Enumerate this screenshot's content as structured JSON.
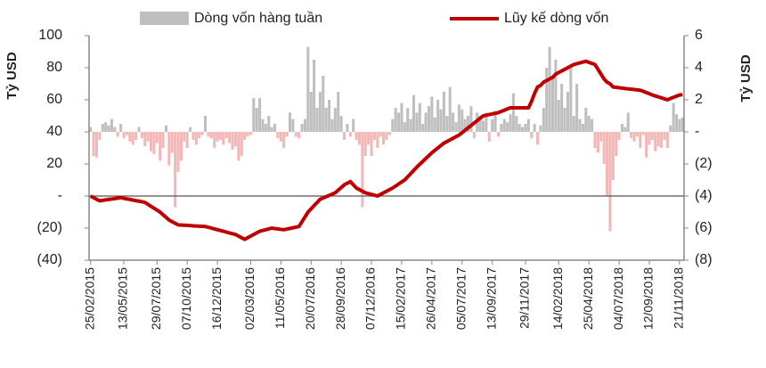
{
  "chart_data": {
    "type": "bar-line",
    "categories": [
      "25/02/2015",
      null,
      null,
      null,
      null,
      null,
      null,
      null,
      null,
      null,
      null,
      "13/05/2015",
      null,
      null,
      null,
      null,
      null,
      null,
      null,
      null,
      null,
      null,
      "29/07/2015",
      null,
      null,
      null,
      null,
      null,
      null,
      null,
      null,
      null,
      "07/10/2015",
      null,
      null,
      null,
      null,
      null,
      null,
      null,
      null,
      null,
      "16/12/2015",
      null,
      null,
      null,
      null,
      null,
      null,
      null,
      null,
      null,
      null,
      "02/03/2016",
      null,
      null,
      null,
      null,
      null,
      null,
      null,
      null,
      null,
      "11/05/2016",
      null,
      null,
      null,
      null,
      null,
      null,
      null,
      null,
      null,
      "20/07/2016",
      null,
      null,
      null,
      null,
      null,
      null,
      null,
      null,
      null,
      "28/09/2016",
      null,
      null,
      null,
      null,
      null,
      null,
      null,
      null,
      null,
      "07/12/2016",
      null,
      null,
      null,
      null,
      null,
      null,
      null,
      null,
      null,
      "15/02/2017",
      null,
      null,
      null,
      null,
      null,
      null,
      null,
      null,
      null,
      "26/04/2017",
      null,
      null,
      null,
      null,
      null,
      null,
      null,
      null,
      null,
      "05/07/2017",
      null,
      null,
      null,
      null,
      null,
      null,
      null,
      null,
      null,
      "13/09/2017",
      null,
      null,
      null,
      null,
      null,
      null,
      null,
      null,
      null,
      null,
      "29/11/2017",
      null,
      null,
      null,
      null,
      null,
      null,
      null,
      null,
      null,
      null,
      "14/02/2018",
      null,
      null,
      null,
      null,
      null,
      null,
      null,
      null,
      null,
      "25/04/2018",
      null,
      null,
      null,
      null,
      null,
      null,
      null,
      null,
      null,
      "04/07/2018",
      null,
      null,
      null,
      null,
      null,
      null,
      null,
      null,
      null,
      "12/09/2018",
      null,
      null,
      null,
      null,
      null,
      null,
      null,
      null,
      null,
      "21/11/2018",
      null
    ],
    "series": [
      {
        "name": "Dòng vốn hàng tuần",
        "kind": "bar",
        "axis": "y2",
        "color": "#bfbfbf",
        "negative_color": "#f2b8b8",
        "values": [
          0.3,
          -1.5,
          -1.6,
          -0.5,
          0.5,
          0.6,
          0.4,
          0.8,
          0.3,
          -0.3,
          0.5,
          -0.4,
          -0.2,
          -0.6,
          -0.8,
          -0.5,
          0.3,
          -0.4,
          -0.9,
          -0.6,
          -1.2,
          -1.4,
          -0.7,
          -1.8,
          -1.0,
          0.4,
          -2.1,
          -1.3,
          -4.7,
          -2.5,
          -1.8,
          -0.6,
          -1.0,
          0.3,
          -0.5,
          -0.8,
          -0.4,
          -0.2,
          1.0,
          -0.3,
          -0.4,
          -1.0,
          -0.6,
          -0.5,
          -0.8,
          -0.4,
          -0.7,
          -1.1,
          -0.9,
          -1.8,
          -1.5,
          -0.5,
          -0.3,
          -0.2,
          2.1,
          1.5,
          2.1,
          0.8,
          0.5,
          1.0,
          0.3,
          0.5,
          -0.4,
          -0.6,
          -1.0,
          -0.3,
          1.2,
          0.8,
          -0.3,
          -0.4,
          0.5,
          0.8,
          5.3,
          2.5,
          4.5,
          1.5,
          2.5,
          3.5,
          1.5,
          2.0,
          0.8,
          1.5,
          2.5,
          1.0,
          -0.5,
          0.5,
          -0.3,
          0.8,
          -0.5,
          -0.8,
          -4.7,
          -1.5,
          -0.8,
          -1.5,
          -0.5,
          -1.0,
          -0.3,
          -0.8,
          -0.5,
          -0.2,
          0.8,
          1.5,
          1.2,
          1.8,
          0.6,
          1.5,
          0.8,
          2.3,
          1.2,
          1.8,
          0.5,
          1.2,
          1.6,
          2.2,
          0.9,
          2.0,
          1.4,
          2.5,
          1.0,
          2.8,
          1.2,
          0.6,
          1.7,
          1.4,
          0.8,
          1.0,
          1.6,
          -0.4,
          1.2,
          1.0,
          0.7,
          1.2,
          -0.6,
          0.8,
          1.3,
          -0.3,
          0.5,
          0.8,
          0.6,
          1.1,
          2.4,
          1.0,
          0.5,
          0.3,
          0.5,
          0.8,
          -0.4,
          0.5,
          -0.8,
          0.4,
          1.5,
          4.0,
          5.3,
          3.5,
          4.5,
          2.0,
          3.0,
          1.5,
          2.5,
          4.2,
          1.0,
          3.0,
          0.8,
          0.5,
          1.5,
          1.0,
          0.8,
          -1.0,
          -1.3,
          -0.6,
          -2.0,
          -4.0,
          -6.2,
          -3.0,
          -1.5,
          -0.5,
          0.5,
          0.3,
          1.2,
          -0.4,
          -0.6,
          -0.3,
          -1.0,
          -0.2,
          -1.6,
          -0.8,
          -0.5,
          -1.2,
          -0.9,
          -1.0,
          -0.5,
          -1.0,
          0.4,
          1.8,
          1.1,
          0.8,
          0.9
        ]
      },
      {
        "name": "Lũy kế dòng vốn",
        "kind": "line",
        "color": "#c00000",
        "values": [
          0,
          -1,
          -2,
          -3,
          -2.7,
          -2.4,
          -2.1,
          -1.9,
          -1.6,
          -1.3,
          -1,
          -1.4,
          -1.8,
          -2.1,
          -2.5,
          -2.9,
          -3.2,
          -3.6,
          -4,
          -5.2,
          -6.4,
          -7.6,
          -8.8,
          -10,
          -11.7,
          -13.3,
          -15,
          -16,
          -17,
          -18,
          -18.1,
          -18.2,
          -18.3,
          -18.4,
          -18.6,
          -18.7,
          -18.8,
          -18.9,
          -19,
          -19.5,
          -20,
          -20.5,
          -21,
          -21.5,
          -22,
          -22.5,
          -23,
          -23.5,
          -24,
          -25,
          -26,
          -27,
          -26,
          -25,
          -24,
          -23,
          -22,
          -21.5,
          -21,
          -20.5,
          -20,
          -20.3,
          -20.5,
          -20.8,
          -21,
          -20.6,
          -20.2,
          -19.8,
          -19.4,
          -19,
          -16,
          -13,
          -10,
          -8,
          -6,
          -4,
          -2,
          -1.2,
          -0.4,
          0.4,
          1.2,
          2,
          3.7,
          5.3,
          7,
          8,
          9,
          7,
          5,
          4,
          3,
          2,
          1.5,
          1,
          0.5,
          0,
          1,
          2,
          3,
          4,
          5,
          6.2,
          7.5,
          8.8,
          10,
          12,
          14,
          16,
          18,
          19.8,
          21.6,
          23.4,
          25.2,
          27,
          28.5,
          30,
          31.5,
          33,
          34,
          35,
          36,
          37,
          38,
          39.5,
          41,
          42.5,
          44,
          45.5,
          47,
          48.5,
          50,
          50.4,
          50.8,
          51.2,
          51.6,
          52,
          52.8,
          53.5,
          54.3,
          55,
          55,
          55,
          55,
          55,
          55,
          55,
          59,
          64,
          68,
          69,
          71,
          72,
          73,
          74,
          76,
          77,
          78,
          79,
          80,
          81,
          82,
          82.5,
          83,
          83.5,
          84,
          83.3,
          82.7,
          82,
          79,
          76,
          73,
          71,
          70,
          68,
          67.8,
          67.5,
          67.3,
          67,
          66.8,
          66.6,
          66.4,
          66.2,
          66,
          65.3,
          64.5,
          63.8,
          63,
          62.4,
          61.8,
          61.2,
          60.6,
          60,
          60.8,
          61.5,
          62.3,
          63,
          63.2
        ]
      }
    ],
    "ylabel": "Tỷ USD",
    "y2label": "Tỷ USD",
    "ylim": [
      -40,
      100
    ],
    "yticks": [
      {
        "value": -40,
        "label": "(40)"
      },
      {
        "value": -20,
        "label": "(20)"
      },
      {
        "value": 0,
        "label": "-"
      },
      20,
      40,
      60,
      80,
      100
    ],
    "y2lim": [
      -8,
      6
    ],
    "y2ticks": [
      {
        "value": -8,
        "label": "(8)"
      },
      {
        "value": -6,
        "label": "(6)"
      },
      {
        "value": -4,
        "label": "(4)"
      },
      {
        "value": -2,
        "label": "(2)"
      },
      {
        "value": 0,
        "label": "-"
      },
      2,
      4,
      6
    ]
  }
}
